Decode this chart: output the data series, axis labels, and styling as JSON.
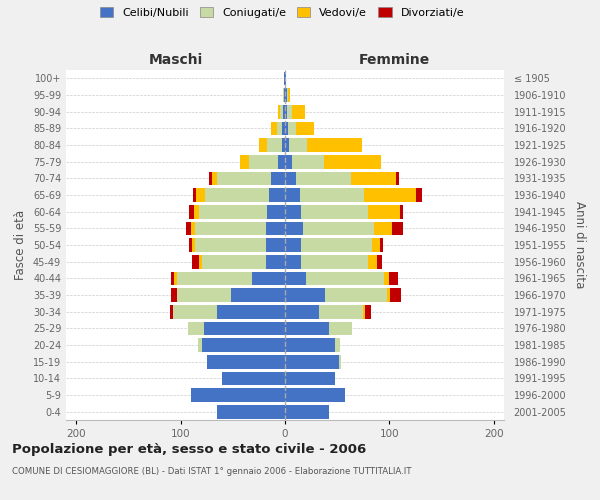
{
  "age_groups": [
    "0-4",
    "5-9",
    "10-14",
    "15-19",
    "20-24",
    "25-29",
    "30-34",
    "35-39",
    "40-44",
    "45-49",
    "50-54",
    "55-59",
    "60-64",
    "65-69",
    "70-74",
    "75-79",
    "80-84",
    "85-89",
    "90-94",
    "95-99",
    "100+"
  ],
  "birth_years": [
    "2001-2005",
    "1996-2000",
    "1991-1995",
    "1986-1990",
    "1981-1985",
    "1976-1980",
    "1971-1975",
    "1966-1970",
    "1961-1965",
    "1956-1960",
    "1951-1955",
    "1946-1950",
    "1941-1945",
    "1936-1940",
    "1931-1935",
    "1926-1930",
    "1921-1925",
    "1916-1920",
    "1911-1915",
    "1906-1910",
    "≤ 1905"
  ],
  "maschi": {
    "celibi": [
      65,
      90,
      60,
      75,
      80,
      78,
      65,
      52,
      32,
      18,
      18,
      18,
      17,
      15,
      13,
      7,
      3,
      3,
      2,
      1,
      1
    ],
    "coniugati": [
      0,
      0,
      0,
      0,
      3,
      15,
      42,
      52,
      72,
      62,
      68,
      68,
      65,
      62,
      52,
      28,
      14,
      5,
      3,
      1,
      0
    ],
    "vedovi": [
      0,
      0,
      0,
      0,
      0,
      0,
      0,
      0,
      2,
      2,
      3,
      4,
      5,
      8,
      5,
      8,
      8,
      5,
      2,
      0,
      0
    ],
    "divorziati": [
      0,
      0,
      0,
      0,
      0,
      0,
      3,
      5,
      3,
      7,
      3,
      5,
      5,
      3,
      3,
      0,
      0,
      0,
      0,
      0,
      0
    ]
  },
  "femmine": {
    "nubili": [
      42,
      58,
      48,
      52,
      48,
      42,
      33,
      38,
      20,
      15,
      15,
      17,
      15,
      14,
      11,
      7,
      4,
      3,
      2,
      2,
      1
    ],
    "coniugate": [
      0,
      0,
      0,
      2,
      5,
      22,
      42,
      60,
      75,
      65,
      68,
      68,
      65,
      62,
      52,
      30,
      17,
      8,
      5,
      1,
      0
    ],
    "vedove": [
      0,
      0,
      0,
      0,
      0,
      0,
      2,
      3,
      5,
      8,
      8,
      18,
      30,
      50,
      43,
      55,
      53,
      17,
      12,
      2,
      0
    ],
    "divorziate": [
      0,
      0,
      0,
      0,
      0,
      0,
      5,
      10,
      8,
      5,
      3,
      10,
      3,
      5,
      3,
      0,
      0,
      0,
      0,
      0,
      0
    ]
  },
  "colors": {
    "celibi_nubili": "#4472c4",
    "coniugati": "#c8daa4",
    "vedovi": "#ffc000",
    "divorziati": "#c00000"
  },
  "xlim": 210,
  "title": "Popolazione per età, sesso e stato civile - 2006",
  "subtitle": "COMUNE DI CESIOMAGGIORE (BL) - Dati ISTAT 1° gennaio 2006 - Elaborazione TUTTITALIA.IT",
  "ylabel_left": "Fasce di età",
  "ylabel_right": "Anni di nascita",
  "xlabel_left": "Maschi",
  "xlabel_right": "Femmine",
  "bg_color": "#f0f0f0",
  "plot_bg_color": "#ffffff"
}
